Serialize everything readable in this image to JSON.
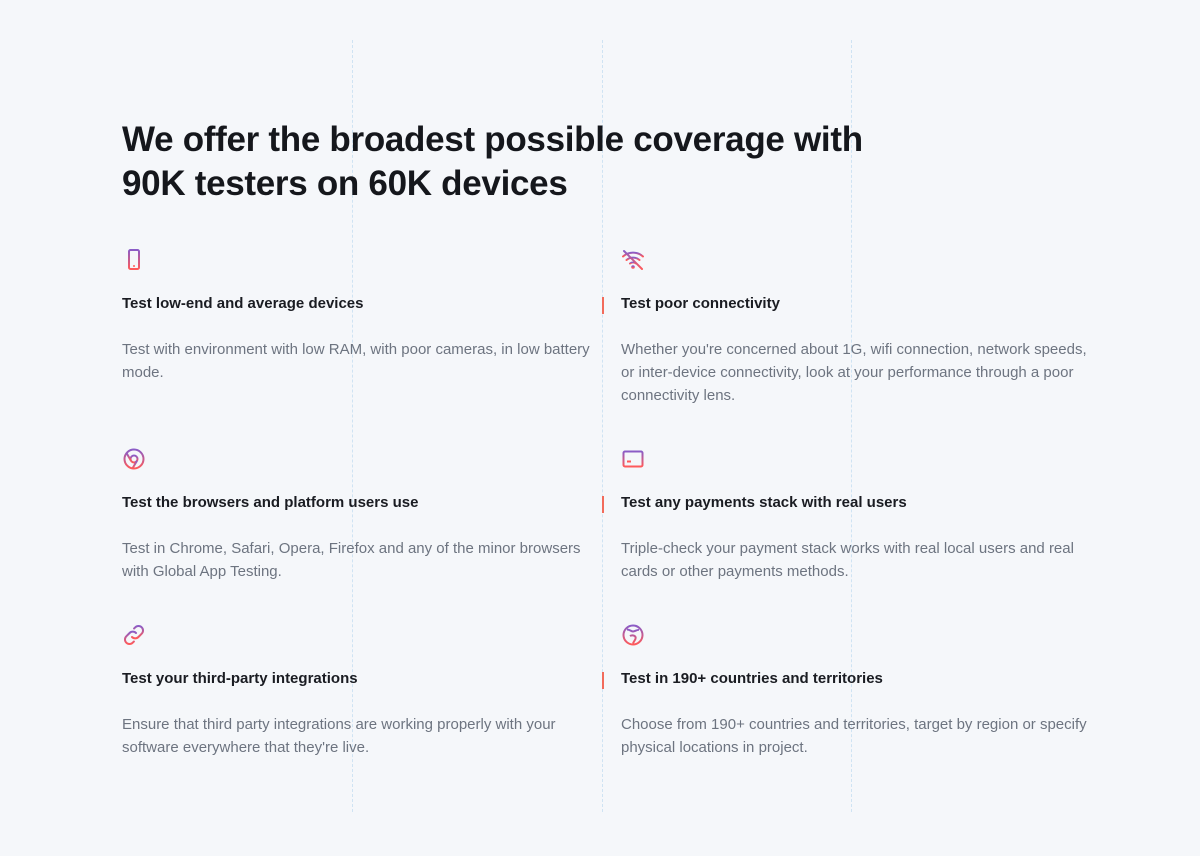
{
  "title": "We offer the broadest possible coverage with 90K testers on 60K devices",
  "accent_colors": {
    "gradient_start": "#8a5cc7",
    "gradient_end": "#ff5a5a",
    "bar": "#f26b5b"
  },
  "features": [
    {
      "icon": "smartphone-icon",
      "heading": "Test low-end and average devices",
      "description": "Test with environment with low RAM, with poor cameras, in low battery mode."
    },
    {
      "icon": "wifi-off-icon",
      "heading": "Test poor connectivity",
      "description": "Whether you're concerned about 1G, wifi connection, network speeds, or inter-device connectivity, look at your performance through a poor connectivity lens."
    },
    {
      "icon": "chrome-icon",
      "heading": "Test the browsers and platform users use",
      "description": "Test in Chrome, Safari, Opera, Firefox and any of the minor browsers with Global App Testing."
    },
    {
      "icon": "credit-card-icon",
      "heading": "Test any payments stack with real users",
      "description": "Triple-check your payment stack works with real local users and real cards or other payments methods."
    },
    {
      "icon": "link-icon",
      "heading": "Test your third-party integrations",
      "description": "Ensure that third party integrations are working properly with your software everywhere that they're live."
    },
    {
      "icon": "globe-icon",
      "heading": "Test in 190+ countries and territories",
      "description": "Choose from 190+ countries and territories, target by region or specify physical locations in project."
    }
  ]
}
